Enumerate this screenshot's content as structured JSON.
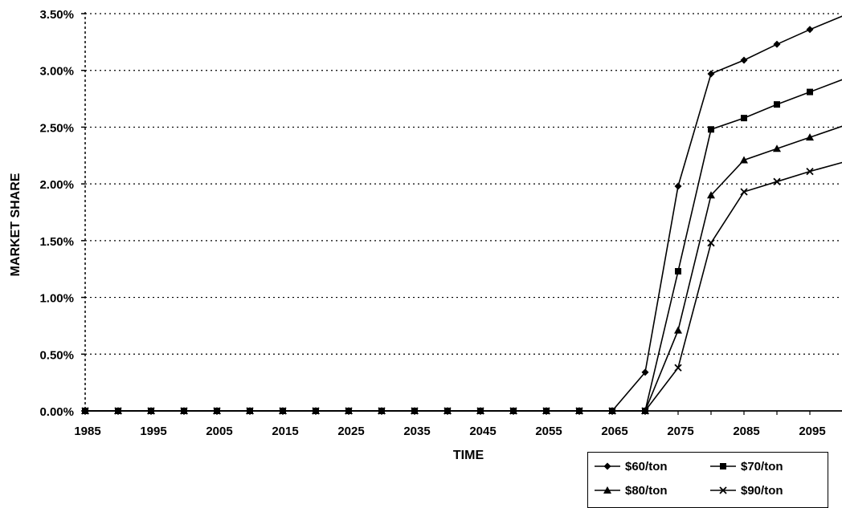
{
  "chart_data": {
    "type": "line",
    "title": "",
    "xlabel": "TIME",
    "ylabel": "MARKET SHARE",
    "x": [
      1985,
      1990,
      1995,
      2000,
      2005,
      2010,
      2015,
      2020,
      2025,
      2030,
      2035,
      2040,
      2045,
      2050,
      2055,
      2060,
      2065,
      2070,
      2075,
      2080,
      2085,
      2090,
      2095,
      2100
    ],
    "x_tick_labels": [
      "1985",
      "1995",
      "2005",
      "2015",
      "2025",
      "2035",
      "2045",
      "2055",
      "2065",
      "2075",
      "2085",
      "2095"
    ],
    "y_tick_labels": [
      "0.00%",
      "0.50%",
      "1.00%",
      "1.50%",
      "2.00%",
      "2.50%",
      "3.00%",
      "3.50%"
    ],
    "ylim": [
      0,
      3.5
    ],
    "y_unit": "%",
    "grid": "horizontal dotted",
    "legend_position": "bottom-right",
    "series": [
      {
        "name": "$60/ton",
        "marker": "diamond",
        "values": [
          0,
          0,
          0,
          0,
          0,
          0,
          0,
          0,
          0,
          0,
          0,
          0,
          0,
          0,
          0,
          0,
          0,
          0.34,
          1.98,
          2.97,
          3.09,
          3.23,
          3.36,
          3.48
        ]
      },
      {
        "name": "$70/ton",
        "marker": "square",
        "values": [
          0,
          0,
          0,
          0,
          0,
          0,
          0,
          0,
          0,
          0,
          0,
          0,
          0,
          0,
          0,
          0,
          0,
          0,
          1.23,
          2.48,
          2.58,
          2.7,
          2.81,
          2.92
        ]
      },
      {
        "name": "$80/ton",
        "marker": "triangle",
        "values": [
          0,
          0,
          0,
          0,
          0,
          0,
          0,
          0,
          0,
          0,
          0,
          0,
          0,
          0,
          0,
          0,
          0,
          0,
          0.71,
          1.9,
          2.21,
          2.31,
          2.41,
          2.51
        ]
      },
      {
        "name": "$90/ton",
        "marker": "x",
        "values": [
          0,
          0,
          0,
          0,
          0,
          0,
          0,
          0,
          0,
          0,
          0,
          0,
          0,
          0,
          0,
          0,
          0,
          0,
          0.38,
          1.48,
          1.93,
          2.02,
          2.11,
          2.19
        ]
      }
    ]
  }
}
